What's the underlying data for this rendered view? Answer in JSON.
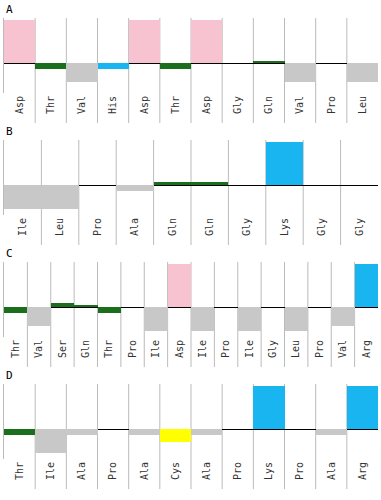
{
  "chart_data": [
    {
      "type": "bar",
      "title": "A",
      "categories": [
        "Asp",
        "Thr",
        "Val",
        "His",
        "Asp",
        "Thr",
        "Asp",
        "Gly",
        "Gln",
        "Val",
        "Pro",
        "Leu"
      ],
      "values": [
        1.0,
        -0.15,
        -0.45,
        -0.15,
        1.0,
        -0.15,
        1.0,
        0,
        0.05,
        -0.45,
        0,
        -0.45
      ],
      "colors": [
        "#f7c3d0",
        "#1b6e1b",
        "#c8c8c8",
        "#19b5f0",
        "#f7c3d0",
        "#1b6e1b",
        "#f7c3d0",
        "#c8c8c8",
        "#1b6e1b",
        "#c8c8c8",
        "#c8c8c8",
        "#c8c8c8"
      ],
      "ylim": [
        -0.7,
        1.05
      ],
      "tick_labels": "x"
    },
    {
      "type": "bar",
      "title": "B",
      "categories": [
        "Ile",
        "Leu",
        "Pro",
        "Ala",
        "Gln",
        "Gln",
        "Gly",
        "Lys",
        "Gly",
        "Gly"
      ],
      "values": [
        -0.55,
        -0.55,
        0,
        -0.15,
        0.08,
        0.08,
        0,
        1.0,
        0,
        0
      ],
      "colors": [
        "#c8c8c8",
        "#c8c8c8",
        "#c8c8c8",
        "#c8c8c8",
        "#1b6e1b",
        "#1b6e1b",
        "#c8c8c8",
        "#19b5f0",
        "#c8c8c8",
        "#c8c8c8"
      ],
      "ylim": [
        -0.7,
        1.05
      ],
      "tick_labels": "x"
    },
    {
      "type": "bar",
      "title": "C",
      "categories": [
        "Thr",
        "Val",
        "Ser",
        "Gln",
        "Thr",
        "Pro",
        "Ile",
        "Asp",
        "Ile",
        "Pro",
        "Ile",
        "Gly",
        "Leu",
        "Pro",
        "Val",
        "Arg"
      ],
      "values": [
        -0.15,
        -0.45,
        0.1,
        0.05,
        -0.15,
        0,
        -0.55,
        1.0,
        -0.55,
        0,
        -0.55,
        0,
        -0.55,
        0,
        -0.45,
        1.0
      ],
      "colors": [
        "#1b6e1b",
        "#c8c8c8",
        "#1b6e1b",
        "#1b6e1b",
        "#1b6e1b",
        "#c8c8c8",
        "#c8c8c8",
        "#f7c3d0",
        "#c8c8c8",
        "#c8c8c8",
        "#c8c8c8",
        "#c8c8c8",
        "#c8c8c8",
        "#c8c8c8",
        "#c8c8c8",
        "#19b5f0"
      ],
      "ylim": [
        -0.7,
        1.05
      ],
      "tick_labels": "x"
    },
    {
      "type": "bar",
      "title": "D",
      "categories": [
        "Thr",
        "Ile",
        "Ala",
        "Pro",
        "Ala",
        "Cys",
        "Ala",
        "Pro",
        "Lys",
        "Pro",
        "Ala",
        "Arg"
      ],
      "values": [
        -0.15,
        -0.55,
        -0.15,
        0,
        -0.15,
        -0.3,
        -0.15,
        0,
        1.0,
        0,
        -0.15,
        1.0
      ],
      "colors": [
        "#1b6e1b",
        "#c8c8c8",
        "#c8c8c8",
        "#c8c8c8",
        "#c8c8c8",
        "#ffff00",
        "#c8c8c8",
        "#c8c8c8",
        "#19b5f0",
        "#c8c8c8",
        "#c8c8c8",
        "#19b5f0"
      ],
      "ylim": [
        -0.7,
        1.05
      ],
      "tick_labels": "x"
    }
  ]
}
